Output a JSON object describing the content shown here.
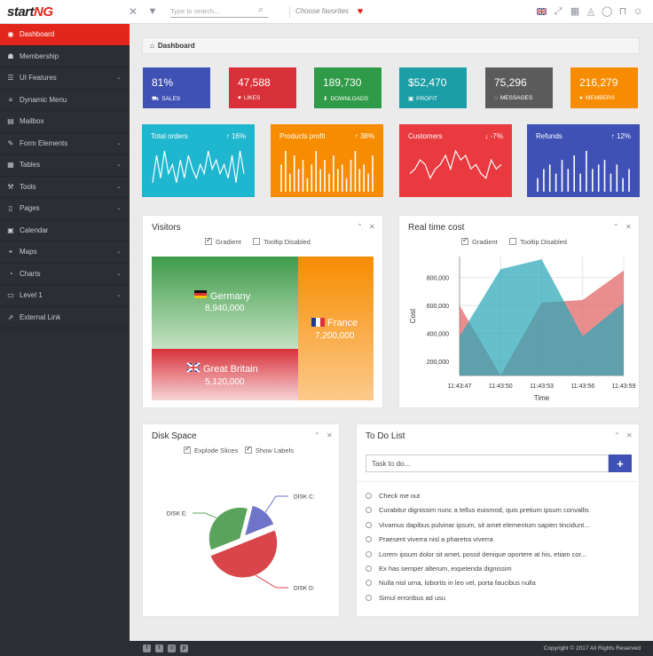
{
  "brand": {
    "part1": "start",
    "part2": "NG"
  },
  "header": {
    "search_placeholder": "Type to search...",
    "favorites_label": "Choose favorites"
  },
  "sidebar": {
    "items": [
      {
        "label": "Dashboard",
        "icon": "dashboard-icon",
        "glyph": "◉",
        "caret": false,
        "active": true
      },
      {
        "label": "Membership",
        "icon": "users-icon",
        "glyph": "☗",
        "caret": false
      },
      {
        "label": "UI Features",
        "icon": "list-icon",
        "glyph": "☰",
        "caret": true
      },
      {
        "label": "Dynamic Menu",
        "icon": "menu-icon",
        "glyph": "≡",
        "caret": false
      },
      {
        "label": "Mailbox",
        "icon": "mailbox-icon",
        "glyph": "▤",
        "caret": false
      },
      {
        "label": "Form Elements",
        "icon": "edit-icon",
        "glyph": "✎",
        "caret": true
      },
      {
        "label": "Tables",
        "icon": "table-icon",
        "glyph": "▦",
        "caret": true
      },
      {
        "label": "Tools",
        "icon": "wrench-icon",
        "glyph": "⚒",
        "caret": true
      },
      {
        "label": "Pages",
        "icon": "pages-icon",
        "glyph": "▯",
        "caret": true
      },
      {
        "label": "Calendar",
        "icon": "calendar-icon",
        "glyph": "▣",
        "caret": false
      },
      {
        "label": "Maps",
        "icon": "map-marker-icon",
        "glyph": "⌖",
        "caret": true
      },
      {
        "label": "Charts",
        "icon": "charts-icon",
        "glyph": "◔",
        "caret": true
      },
      {
        "label": "Level 1",
        "icon": "folder-icon",
        "glyph": "▭",
        "caret": true
      },
      {
        "label": "External Link",
        "icon": "external-link-icon",
        "glyph": "⇗",
        "caret": false
      }
    ]
  },
  "breadcrumb": {
    "label": "Dashboard"
  },
  "stats": [
    {
      "value": "81%",
      "label": "SALES",
      "icon": "cart-icon",
      "glyph": "⛟",
      "color": "#3f51b5"
    },
    {
      "value": "47,588",
      "label": "LIKES",
      "icon": "thumbs-up-icon",
      "glyph": "♥",
      "color": "#d8313a"
    },
    {
      "value": "189,730",
      "label": "DOWNLOADS",
      "icon": "download-icon",
      "glyph": "⬇",
      "color": "#2f9a47"
    },
    {
      "value": "$52,470",
      "label": "PROFIT",
      "icon": "money-icon",
      "glyph": "▣",
      "color": "#1c9ea6"
    },
    {
      "value": "75,296",
      "label": "MESSAGES",
      "icon": "comment-icon",
      "glyph": "◌",
      "color": "#5b5b5b"
    },
    {
      "value": "216,279",
      "label": "MEMBERS",
      "icon": "user-icon",
      "glyph": "●",
      "color": "#f78c00"
    }
  ],
  "chart_tiles": [
    {
      "title": "Total orders",
      "pct": "16%",
      "dir": "up",
      "color": "#1fb6cf",
      "type": "line",
      "values": [
        2,
        8,
        3,
        9,
        4,
        6,
        2,
        7,
        3,
        8,
        5,
        3,
        6,
        4,
        9,
        5,
        7,
        4,
        6,
        3,
        8,
        2,
        9,
        4
      ]
    },
    {
      "title": "Products profit",
      "pct": "38%",
      "dir": "up",
      "color": "#f78c00",
      "type": "bar",
      "values": [
        6,
        9,
        4,
        8,
        5,
        7,
        3,
        6,
        9,
        5,
        7,
        4,
        8,
        5,
        6,
        3,
        7,
        9,
        5,
        6,
        4,
        8
      ]
    },
    {
      "title": "Customers",
      "pct": "-7%",
      "dir": "down",
      "color": "#e93a3f",
      "type": "line",
      "values": [
        4,
        5,
        7,
        6,
        3,
        5,
        6,
        8,
        5,
        9,
        7,
        8,
        5,
        6,
        4,
        3,
        7,
        5,
        6
      ]
    },
    {
      "title": "Refunds",
      "pct": "12%",
      "dir": "up",
      "color": "#3f51b5",
      "type": "bar",
      "values": [
        3,
        5,
        6,
        4,
        7,
        5,
        8,
        4,
        9,
        5,
        6,
        7,
        4,
        6,
        3,
        5
      ]
    }
  ],
  "visitors": {
    "title": "Visitors",
    "options": [
      {
        "label": "Gradient",
        "checked": true
      },
      {
        "label": "Tooltip Disabled",
        "checked": false
      }
    ],
    "chart_data": {
      "type": "treemap",
      "items": [
        {
          "name": "Germany",
          "value": "8,940,000",
          "color": "#3e9b4a"
        },
        {
          "name": "France",
          "value": "7,200,000",
          "color": "#f78c00"
        },
        {
          "name": "Great Britain",
          "value": "5,120,000",
          "color": "#d8313a"
        }
      ]
    }
  },
  "realtime": {
    "title": "Real time cost",
    "options": [
      {
        "label": "Gradient",
        "checked": true
      },
      {
        "label": "Tooltip Disabled",
        "checked": false
      }
    ],
    "chart_data": {
      "type": "area",
      "xlabel": "Time",
      "ylabel": "Cost",
      "ylim": [
        100000,
        950000
      ],
      "yticks": [
        "200,000",
        "400,000",
        "600,000",
        "800,000"
      ],
      "ytick_values": [
        200000,
        400000,
        600000,
        800000
      ],
      "categories": [
        "11:43:47",
        "11:43:50",
        "11:43:53",
        "11:43:56",
        "11:43:59"
      ],
      "series": [
        {
          "values": [
            600000,
            100000,
            620000,
            640000,
            850000
          ],
          "color": "#e06363"
        },
        {
          "values": [
            380000,
            860000,
            930000,
            380000,
            620000
          ],
          "color": "#2aa7b8"
        }
      ]
    }
  },
  "disk": {
    "title": "Disk Space",
    "options": [
      {
        "label": "Explode Slices",
        "checked": true
      },
      {
        "label": "Show Labels",
        "checked": true
      }
    ],
    "chart_data": {
      "type": "pie",
      "slices": [
        {
          "label": "DISK C:",
          "value": 15,
          "color": "#6f74c9"
        },
        {
          "label": "DISK D:",
          "value": 50,
          "color": "#d8454a"
        },
        {
          "label": "DISK E:",
          "value": 35,
          "color": "#5aa35c"
        }
      ]
    }
  },
  "todo": {
    "title": "To Do List",
    "input_placeholder": "Task to do...",
    "items": [
      "Check me out",
      "Curabitur dignissim nunc a tellus euismod, quis pretium ipsum convallis",
      "Vivamus dapibus pulvinar ipsum, sit amet elementum sapien tincidunt...",
      "Praesent viverra nisl a pharetra viverra",
      "Lorem ipsum dolor sit amet, possit denique oportere at his, etiam cor...",
      "Ex has semper alterum, expetenda dignissim",
      "Nulla nisl urna, lobortis in leo vel, porta faucibus nulla",
      "Simul erroribus ad usu"
    ]
  },
  "footer": {
    "copyright": "Copyright © 2017 All Rights Reserved",
    "social": [
      {
        "icon": "facebook-icon",
        "glyph": "f"
      },
      {
        "icon": "twitter-icon",
        "glyph": "t"
      },
      {
        "icon": "instagram-icon",
        "glyph": "◎"
      },
      {
        "icon": "pinterest-icon",
        "glyph": "p"
      }
    ]
  }
}
